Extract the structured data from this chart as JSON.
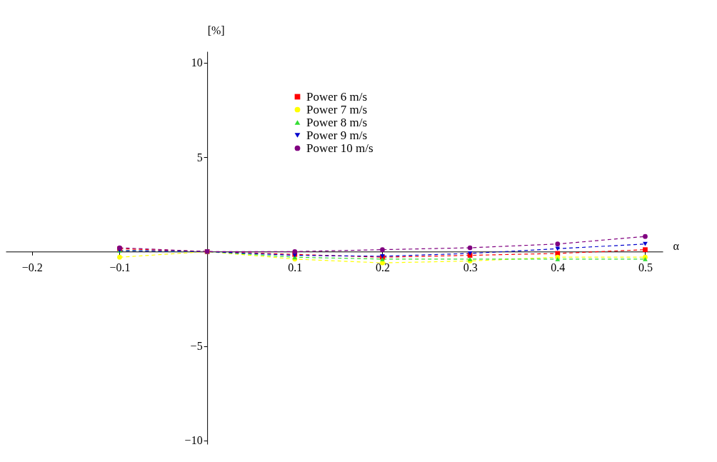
{
  "chart_data": {
    "type": "line",
    "xlabel": "α",
    "ylabel": "[%]",
    "x": [
      -0.1,
      0,
      0.1,
      0.2,
      0.3,
      0.4,
      0.5
    ],
    "series": [
      {
        "name": "Power 6 m/s",
        "color": "#ff0000",
        "marker": "square",
        "values": [
          0.15,
          0,
          -0.15,
          -0.3,
          -0.2,
          -0.1,
          0.1
        ]
      },
      {
        "name": "Power 7 m/s",
        "color": "#ffff00",
        "marker": "circle",
        "values": [
          -0.3,
          0,
          -0.4,
          -0.6,
          -0.5,
          -0.3,
          -0.3
        ]
      },
      {
        "name": "Power 8 m/s",
        "color": "#33dd33",
        "marker": "triangle",
        "values": [
          0.05,
          0,
          -0.3,
          -0.4,
          -0.4,
          -0.4,
          -0.4
        ]
      },
      {
        "name": "Power 9 m/s",
        "color": "#0000cc",
        "marker": "triangle-down",
        "values": [
          0.05,
          0,
          -0.2,
          -0.25,
          -0.1,
          0.15,
          0.4
        ]
      },
      {
        "name": "Power 10 m/s",
        "color": "#800080",
        "marker": "circle",
        "values": [
          0.2,
          0,
          0.0,
          0.1,
          0.2,
          0.4,
          0.8
        ]
      }
    ],
    "xlim": [
      -0.23,
      0.52
    ],
    "xticks": [
      -0.2,
      -0.1,
      0.1,
      0.2,
      0.3,
      0.4,
      0.5
    ],
    "ylim": [
      -10.2,
      10.6
    ],
    "yticks": [
      -10,
      -5,
      5,
      10
    ],
    "grid": false,
    "legend": "top",
    "line_style": "dashed"
  }
}
